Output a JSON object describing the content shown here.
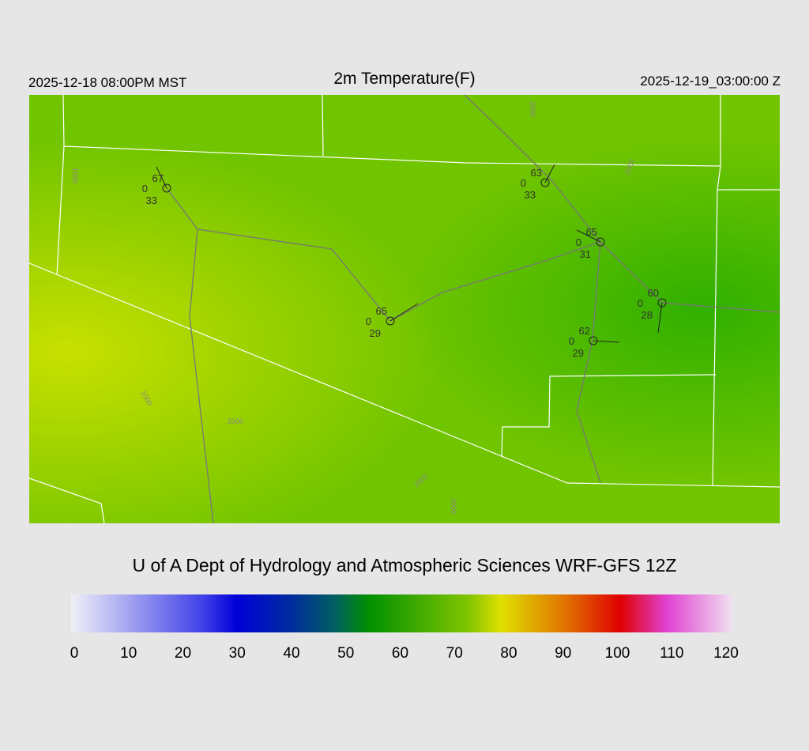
{
  "header": {
    "left": "2025-12-18 08:00PM MST",
    "title": "2m Temperature(F)",
    "right": "2025-12-19_03:00:00 Z"
  },
  "stations": [
    {
      "temp": "67",
      "code": "0",
      "dew": "33"
    },
    {
      "temp": "63",
      "code": "0",
      "dew": "33"
    },
    {
      "temp": "65",
      "code": "0",
      "dew": "31"
    },
    {
      "temp": "60",
      "code": "0",
      "dew": "28"
    },
    {
      "temp": "65",
      "code": "0",
      "dew": "29"
    },
    {
      "temp": "62",
      "code": "0",
      "dew": "29"
    }
  ],
  "contour_labels": [
    "1000",
    "1000",
    "2000",
    "2000",
    "2000",
    "2000",
    "2000"
  ],
  "credit": "U of A Dept of Hydrology and Atmospheric Sciences WRF-GFS 12Z",
  "colorbar": {
    "ticks": [
      0,
      10,
      20,
      30,
      40,
      50,
      60,
      70,
      80,
      90,
      100,
      110,
      120
    ],
    "lim": [
      0,
      120
    ]
  }
}
